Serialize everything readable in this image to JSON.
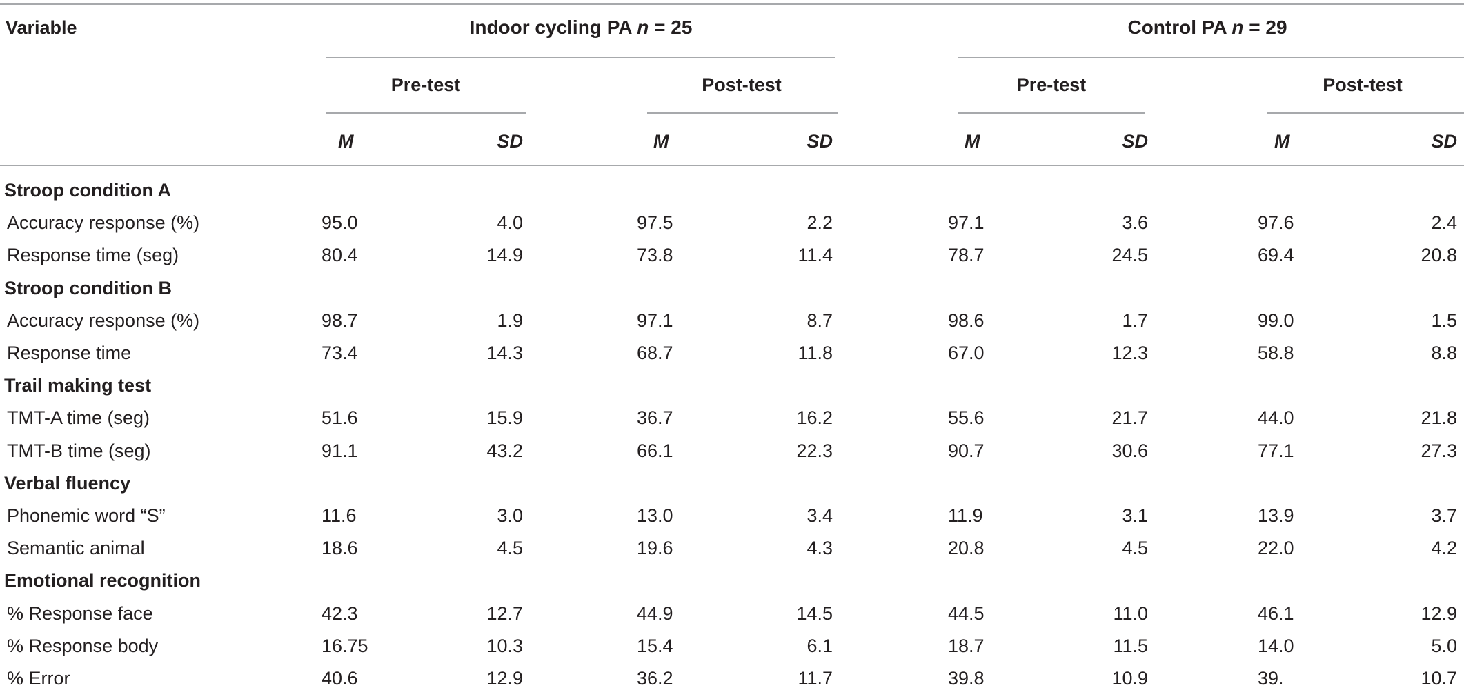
{
  "header": {
    "variable": "Variable",
    "groups": [
      {
        "title": "Indoor cycling PA",
        "n_label": "n",
        "n_value": " = 25"
      },
      {
        "title": "Control PA",
        "n_label": "n",
        "n_value": " = 29"
      }
    ],
    "phases": [
      "Pre-test",
      "Post-test",
      "Pre-test",
      "Post-test"
    ],
    "stats": [
      "M",
      "SD",
      "M",
      "SD",
      "M",
      "SD",
      "M",
      "SD"
    ]
  },
  "sections": [
    {
      "title": "Stroop condition A",
      "rows": [
        {
          "label": "Accuracy response (%)",
          "values": [
            "95.0",
            "4.0",
            "97.5",
            "2.2",
            "97.1",
            "3.6",
            "97.6",
            "2.4"
          ]
        },
        {
          "label": "Response time (seg)",
          "values": [
            "80.4",
            "14.9",
            "73.8",
            "11.4",
            "78.7",
            "24.5",
            "69.4",
            "20.8"
          ]
        }
      ]
    },
    {
      "title": "Stroop condition B",
      "rows": [
        {
          "label": "Accuracy response (%)",
          "values": [
            "98.7",
            "1.9",
            "97.1",
            "8.7",
            "98.6",
            "1.7",
            "99.0",
            "1.5"
          ]
        },
        {
          "label": "Response time",
          "values": [
            "73.4",
            "14.3",
            "68.7",
            "11.8",
            "67.0",
            "12.3",
            "58.8",
            "8.8"
          ]
        }
      ]
    },
    {
      "title": "Trail making test",
      "rows": [
        {
          "label": "TMT-A time (seg)",
          "values": [
            "51.6",
            "15.9",
            "36.7",
            "16.2",
            "55.6",
            "21.7",
            "44.0",
            "21.8"
          ]
        },
        {
          "label": "TMT-B time (seg)",
          "values": [
            "91.1",
            "43.2",
            "66.1",
            "22.3",
            "90.7",
            "30.6",
            "77.1",
            "27.3"
          ]
        }
      ]
    },
    {
      "title": "Verbal fluency",
      "rows": [
        {
          "label": "Phonemic word “S”",
          "values": [
            "11.6",
            "3.0",
            "13.0",
            "3.4",
            "11.9",
            "3.1",
            "13.9",
            "3.7"
          ]
        },
        {
          "label": "Semantic animal",
          "values": [
            "18.6",
            "4.5",
            "19.6",
            "4.3",
            "20.8",
            "4.5",
            "22.0",
            "4.2"
          ]
        }
      ]
    },
    {
      "title": "Emotional recognition",
      "rows": [
        {
          "label": "% Response face",
          "values": [
            "42.3",
            "12.7",
            "44.9",
            "14.5",
            "44.5",
            "11.0",
            "46.1",
            "12.9"
          ]
        },
        {
          "label": "% Response body",
          "values": [
            "16.75",
            "10.3",
            "15.4",
            "6.1",
            "18.7",
            "11.5",
            "14.0",
            "5.0"
          ]
        },
        {
          "label": "% Error",
          "values": [
            "40.6",
            "12.9",
            "36.2",
            "11.7",
            "39.8",
            "10.9",
            "39.",
            "10.7"
          ]
        }
      ]
    }
  ]
}
